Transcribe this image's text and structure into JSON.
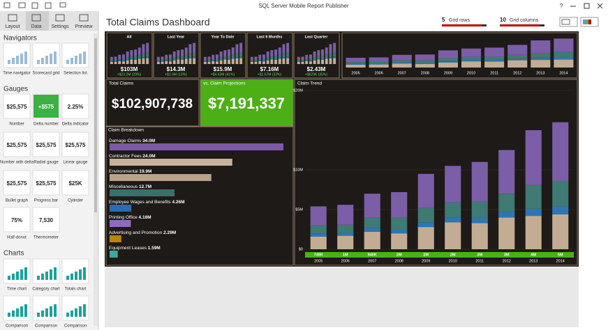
{
  "window": {
    "title": "SQL Server Mobile Report Publisher",
    "help": "?"
  },
  "tabs": [
    "Layout",
    "Data",
    "Settings",
    "Preview"
  ],
  "sidebar": [
    {
      "title": "Navigators",
      "items": [
        {
          "label": "Time navigator"
        },
        {
          "label": "Scorecard grid"
        },
        {
          "label": "Selection list"
        }
      ]
    },
    {
      "title": "Gauges",
      "items": [
        {
          "label": "Number",
          "preview": "$25,575"
        },
        {
          "label": "Delta number",
          "preview": "+$575"
        },
        {
          "label": "Delta indicator",
          "preview": "2.25%"
        },
        {
          "label": "Number with delta",
          "preview": "$25,575"
        },
        {
          "label": "Radial gauge",
          "preview": "$25,575"
        },
        {
          "label": "Linear gauge",
          "preview": "$25,575"
        },
        {
          "label": "Bullet graph",
          "preview": "$25,575"
        },
        {
          "label": "Progress bar",
          "preview": "$25,575"
        },
        {
          "label": "Cylinder",
          "preview": "$25K"
        },
        {
          "label": "Half-donut",
          "preview": "75%"
        },
        {
          "label": "Thermometer",
          "preview": "7,530"
        }
      ]
    },
    {
      "title": "Charts",
      "items": [
        {
          "label": "Time chart"
        },
        {
          "label": "Category chart"
        },
        {
          "label": "Totals chart"
        },
        {
          "label": "Comparison"
        },
        {
          "label": "Comparison"
        },
        {
          "label": "Comparison"
        }
      ]
    }
  ],
  "dashboard": {
    "title": "Total Claims Dashboard",
    "grid_rows": {
      "count": "5",
      "label": "Grid rows"
    },
    "grid_columns": {
      "count": "10",
      "label": "Grid columns"
    },
    "tiles": [
      {
        "title": "All",
        "value": "$103M",
        "delta": "+$23.2M (29%)"
      },
      {
        "title": "Last Year",
        "value": "$14.3M",
        "delta": "+$1.6M (13%)"
      },
      {
        "title": "Year To Date",
        "value": "$15.9M",
        "delta": "+$4.63M (41%)"
      },
      {
        "title": "Last 6 Months",
        "value": "$7.16M",
        "delta": "+$1.67M (33%)"
      },
      {
        "title": "Last Quarter",
        "value": "$2.43M",
        "delta": "+$629K (35%)"
      }
    ],
    "kpis": [
      {
        "title": "Total Claims",
        "value": "$102,907,738"
      },
      {
        "title": "vs. Claim Projections",
        "value": "$7,191,337"
      }
    ]
  },
  "chart_data": [
    {
      "type": "hbar",
      "title": "Claim Breakdown",
      "categories": [
        "Damage Claims",
        "Contractor Fees",
        "Environmental",
        "Miscellaneous",
        "Employee Wages and Benefits",
        "Printing Office",
        "Advertising and Promotion",
        "Equipment Leases"
      ],
      "values": [
        34.0,
        24.0,
        19.9,
        12.7,
        4.26,
        4.16,
        2.29,
        1.59
      ],
      "value_labels": [
        "34.0M",
        "24.0M",
        "19.9M",
        "12.7M",
        "4.26M",
        "4.16M",
        "2.29M",
        "1.59M"
      ],
      "colors": [
        "#7a5aa5",
        "#c7b29b",
        "#b9a28b",
        "#3e6e6b",
        "#2a6cb0",
        "#8f6bbb",
        "#b8860b",
        "#3fa6a0"
      ],
      "xlim": [
        0,
        34
      ]
    },
    {
      "type": "stacked-bar",
      "title": "Claim Trend",
      "categories": [
        "2005",
        "2006",
        "2007",
        "2008",
        "2009",
        "2010",
        "2011",
        "2012",
        "2013",
        "2014"
      ],
      "footer_labels": [
        "749K",
        "1M",
        "940K",
        "2M",
        "2M",
        "2M",
        "3M",
        "3M",
        "4M",
        "5M"
      ],
      "series": [
        {
          "color": "#c2ad94",
          "values": [
            1.6,
            1.7,
            2.2,
            2.0,
            2.8,
            3.4,
            3.3,
            4.0,
            4.2,
            4.4
          ]
        },
        {
          "color": "#2e75b6",
          "values": [
            0.4,
            0.4,
            0.5,
            0.5,
            0.6,
            0.6,
            0.7,
            0.7,
            0.9,
            1.0
          ]
        },
        {
          "color": "#3f7a73",
          "values": [
            1.0,
            1.0,
            1.3,
            1.5,
            1.8,
            1.9,
            2.0,
            2.3,
            3.0,
            3.2
          ]
        },
        {
          "color": "#7b5ea7",
          "values": [
            2.4,
            2.5,
            3.0,
            3.2,
            4.3,
            4.6,
            5.0,
            5.5,
            6.9,
            7.4
          ]
        }
      ],
      "ylim": [
        0,
        20.5
      ],
      "yticks": [
        {
          "value": 0,
          "label": "$0"
        },
        {
          "value": 5,
          "label": "$5M"
        },
        {
          "value": 10,
          "label": "$10M"
        },
        {
          "value": 20,
          "label": "$20M"
        }
      ]
    }
  ]
}
